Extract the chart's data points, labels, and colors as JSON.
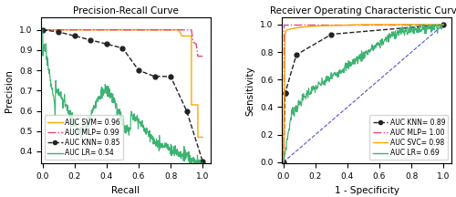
{
  "pr_title": "Precision-Recall Curve",
  "roc_title": "Receiver Operating Characteristic Curve",
  "pr_xlabel": "Recall",
  "pr_ylabel": "Precision",
  "roc_xlabel": "1 - Specificity",
  "roc_ylabel": "Sensitivity",
  "pr_legend": [
    {
      "label": "AUC SVM= 0.96",
      "color": "#FFA500",
      "linestyle": "-",
      "marker": null
    },
    {
      "label": "AUC MLP= 0.99",
      "color": "#E8437A",
      "linestyle": "-.",
      "marker": null
    },
    {
      "label": "AUC KNN= 0.85",
      "color": "#222222",
      "linestyle": "--",
      "marker": "o"
    },
    {
      "label": "AUC LR= 0.54",
      "color": "#3CB371",
      "linestyle": "-",
      "marker": null
    }
  ],
  "roc_legend": [
    {
      "label": "AUC KNN= 0.89",
      "color": "#222222",
      "linestyle": "--",
      "marker": "o"
    },
    {
      "label": "AUC MLP= 1.00",
      "color": "#E8437A",
      "linestyle": "-.",
      "marker": null
    },
    {
      "label": "AUC SVC= 0.98",
      "color": "#FFA500",
      "linestyle": "-",
      "marker": null
    },
    {
      "label": "AUC LR= 0.69",
      "color": "#3CB371",
      "linestyle": "-",
      "marker": null
    }
  ],
  "diagonal_color": "#5555CC",
  "diagonal_linestyle": "--",
  "figsize": [
    5.0,
    2.16
  ],
  "dpi": 100
}
